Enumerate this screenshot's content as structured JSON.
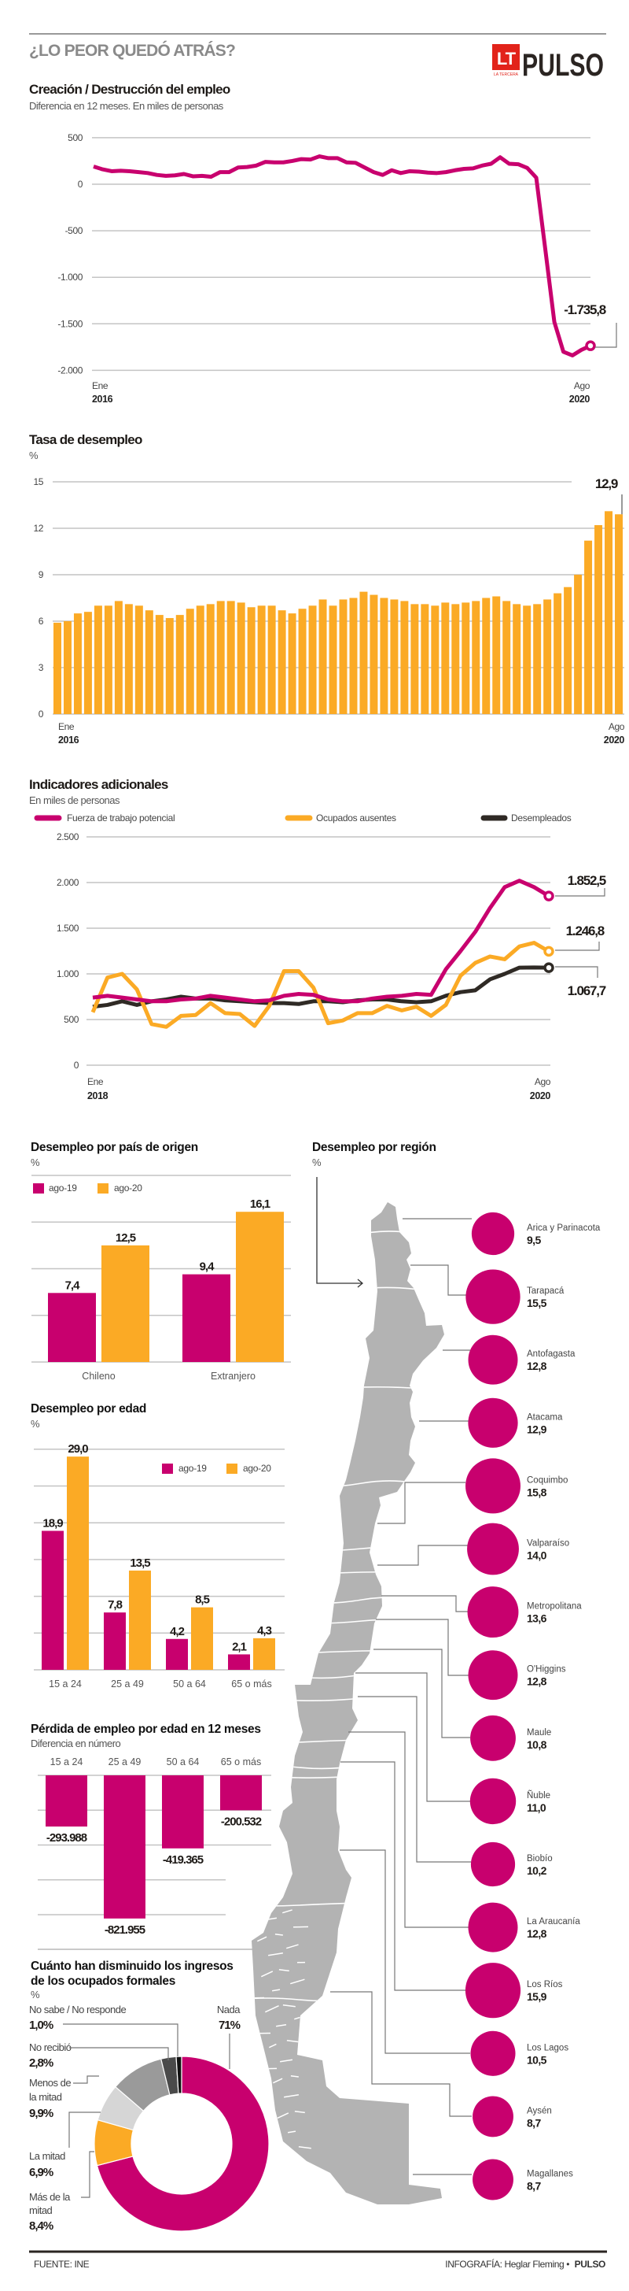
{
  "header": {
    "title": "¿LO PEOR QUEDÓ ATRÁS?",
    "logo_lt": "LT",
    "logo_lt_sub": "LA TERCERA",
    "logo_brand": "PULSO"
  },
  "colors": {
    "magenta": "#c8006e",
    "orange": "#fbaa25",
    "dark": "#2f2a25",
    "grid": "#c4c4c4",
    "map": "#b3b3b3",
    "logo_red": "#e2231a"
  },
  "chart_data": [
    {
      "id": "empleo",
      "type": "line",
      "title": "Creación / Destrucción del empleo",
      "subtitle": "Diferencia en 12 meses. En miles de personas",
      "x_range": [
        "2016-01",
        "2020-08"
      ],
      "x_labels": {
        "start_month": "Ene",
        "start_year": "2016",
        "end_month": "Ago",
        "end_year": "2020"
      },
      "ylim": [
        -2000,
        500
      ],
      "yticks": [
        500,
        0,
        -500,
        -1000,
        -1500,
        -2000
      ],
      "ytick_labels": [
        "500",
        "0",
        "-500",
        "-1.000",
        "-1.500",
        "-2.000"
      ],
      "grid": true,
      "series": [
        {
          "color": "#c8006e",
          "values": [
            190,
            160,
            140,
            145,
            140,
            130,
            120,
            100,
            90,
            95,
            110,
            85,
            90,
            80,
            130,
            130,
            180,
            185,
            200,
            240,
            235,
            235,
            250,
            270,
            265,
            300,
            280,
            280,
            235,
            230,
            180,
            130,
            100,
            150,
            120,
            140,
            135,
            125,
            120,
            130,
            150,
            165,
            170,
            200,
            220,
            290,
            220,
            215,
            175,
            70,
            -700,
            -1480,
            -1800,
            -1840,
            -1780,
            -1735.8
          ]
        }
      ],
      "end_label": "-1.735,8"
    },
    {
      "id": "tasa",
      "type": "bar",
      "title": "Tasa de desempleo",
      "unit": "%",
      "x_range": [
        "2016-01",
        "2020-08"
      ],
      "x_labels": {
        "start_month": "Ene",
        "start_year": "2016",
        "end_month": "Ago",
        "end_year": "2020"
      },
      "ylim": [
        0,
        15
      ],
      "yticks": [
        0,
        3,
        6,
        9,
        12,
        15
      ],
      "ytick_labels": [
        "0",
        "3",
        "6",
        "9",
        "12",
        "15"
      ],
      "grid": true,
      "color": "#fbaa25",
      "values": [
        5.9,
        6.0,
        6.5,
        6.6,
        7.0,
        7.0,
        7.3,
        7.1,
        7.0,
        6.7,
        6.4,
        6.2,
        6.4,
        6.8,
        7.0,
        7.1,
        7.3,
        7.3,
        7.2,
        6.9,
        7.0,
        7.0,
        6.7,
        6.5,
        6.8,
        7.0,
        7.4,
        7.0,
        7.4,
        7.5,
        7.9,
        7.7,
        7.5,
        7.4,
        7.3,
        7.1,
        7.1,
        7.0,
        7.2,
        7.1,
        7.2,
        7.3,
        7.5,
        7.6,
        7.3,
        7.1,
        7.0,
        7.1,
        7.4,
        7.8,
        8.2,
        9.0,
        11.2,
        12.2,
        13.1,
        12.9
      ],
      "end_label": "12,9"
    },
    {
      "id": "indicadores",
      "type": "line",
      "title": "Indicadores adicionales",
      "subtitle": "En miles de personas",
      "x_range": [
        "2018-01",
        "2020-08"
      ],
      "x_labels": {
        "start_month": "Ene",
        "start_year": "2018",
        "end_month": "Ago",
        "end_year": "2020"
      },
      "ylim": [
        0,
        2500
      ],
      "yticks": [
        0,
        500,
        1000,
        1500,
        2000,
        2500
      ],
      "ytick_labels": [
        "0",
        "500",
        "1.000",
        "1.500",
        "2.000",
        "2.500"
      ],
      "grid": true,
      "legend": "top",
      "series": [
        {
          "name": "Fuerza de trabajo potencial",
          "color": "#c8006e",
          "end_label": "1.852,5",
          "values": [
            740,
            760,
            740,
            720,
            700,
            700,
            720,
            730,
            760,
            740,
            720,
            700,
            710,
            760,
            780,
            770,
            720,
            700,
            700,
            730,
            750,
            760,
            780,
            770,
            1050,
            1250,
            1460,
            1720,
            1950,
            2020,
            1950,
            1852.5
          ]
        },
        {
          "name": "Ocupados ausentes",
          "color": "#fbaa25",
          "end_label": "1.246,8",
          "values": [
            580,
            960,
            1000,
            830,
            450,
            420,
            540,
            550,
            680,
            570,
            560,
            430,
            650,
            1030,
            1030,
            850,
            460,
            490,
            570,
            570,
            650,
            600,
            640,
            540,
            660,
            980,
            1120,
            1190,
            1160,
            1300,
            1340,
            1246.8
          ]
        },
        {
          "name": "Desempleados",
          "color": "#2f2a25",
          "end_label": "1.067,7",
          "values": [
            640,
            660,
            700,
            660,
            700,
            720,
            750,
            730,
            730,
            710,
            700,
            690,
            680,
            680,
            670,
            700,
            700,
            690,
            710,
            720,
            720,
            700,
            690,
            700,
            760,
            800,
            820,
            940,
            1000,
            1068,
            1070,
            1067.7
          ]
        }
      ]
    },
    {
      "id": "origen",
      "type": "bar",
      "title": "Desempleo por país de origen",
      "unit": "%",
      "categories": [
        "Chileno",
        "Extranjero"
      ],
      "ylim": [
        0,
        20
      ],
      "grid": true,
      "legend": "top-left",
      "series": [
        {
          "name": "ago-19",
          "color": "#c8006e",
          "values": [
            7.4,
            9.4
          ],
          "labels": [
            "7,4",
            "9,4"
          ]
        },
        {
          "name": "ago-20",
          "color": "#fbaa25",
          "values": [
            12.5,
            16.1
          ],
          "labels": [
            "12,5",
            "16,1"
          ]
        }
      ]
    },
    {
      "id": "edad",
      "type": "bar",
      "title": "Desempleo por edad",
      "unit": "%",
      "categories": [
        "15 a 24",
        "25 a 49",
        "50 a 64",
        "65 o más"
      ],
      "ylim": [
        0,
        30
      ],
      "grid": true,
      "legend": "top-right",
      "series": [
        {
          "name": "ago-19",
          "color": "#c8006e",
          "values": [
            18.9,
            7.8,
            4.2,
            2.1
          ],
          "labels": [
            "18,9",
            "7,8",
            "4,2",
            "2,1"
          ]
        },
        {
          "name": "ago-20",
          "color": "#fbaa25",
          "values": [
            29.0,
            13.5,
            8.5,
            4.3
          ],
          "labels": [
            "29,0",
            "13,5",
            "8,5",
            "4,3"
          ]
        }
      ]
    },
    {
      "id": "perdida",
      "type": "bar",
      "title": "Pérdida de empleo por edad en 12 meses",
      "subtitle": "Diferencia en número",
      "categories": [
        "15 a 24",
        "25 a 49",
        "50 a 64",
        "65 o más"
      ],
      "ylim": [
        -800000,
        0
      ],
      "grid": true,
      "color": "#c8006e",
      "values": [
        -293988,
        -821955,
        -419365,
        -200532
      ],
      "labels": [
        "-293.988",
        "-821.955",
        "-419.365",
        "-200.532"
      ]
    },
    {
      "id": "ingresos",
      "type": "pie",
      "title_lines": [
        "Cuánto han disminuido los ingresos",
        "de los ocupados formales"
      ],
      "unit": "%",
      "slices": [
        {
          "name": "Nada",
          "lines": [
            "Nada"
          ],
          "value": 71,
          "label": "71%",
          "color": "#c8006e"
        },
        {
          "name": "Más de la mitad",
          "lines": [
            "Más de la",
            "mitad"
          ],
          "value": 8.4,
          "label": "8,4%",
          "color": "#fbaa25"
        },
        {
          "name": "La mitad",
          "lines": [
            "La mitad"
          ],
          "value": 6.9,
          "label": "6,9%",
          "color": "#d6d6d6"
        },
        {
          "name": "Menos de la mitad",
          "lines": [
            "Menos de",
            "la mitad"
          ],
          "value": 9.9,
          "label": "9,9%",
          "color": "#9a9a9a"
        },
        {
          "name": "No recibió",
          "lines": [
            "No recibió"
          ],
          "value": 2.8,
          "label": "2,8%",
          "color": "#4a4a4a"
        },
        {
          "name": "No sabe / No responde",
          "lines": [
            "No sabe / No responde"
          ],
          "value": 1.0,
          "label": "1,0%",
          "color": "#111111"
        }
      ]
    },
    {
      "id": "region",
      "type": "bubble-map",
      "title": "Desempleo por región",
      "unit": "%",
      "regions": [
        {
          "name": "Arica y Parinacota",
          "value": 9.5,
          "label": "9,5"
        },
        {
          "name": "Tarapacá",
          "value": 15.5,
          "label": "15,5"
        },
        {
          "name": "Antofagasta",
          "value": 12.8,
          "label": "12,8"
        },
        {
          "name": "Atacama",
          "value": 12.9,
          "label": "12,9"
        },
        {
          "name": "Coquimbo",
          "value": 15.8,
          "label": "15,8"
        },
        {
          "name": "Valparaíso",
          "value": 14.0,
          "label": "14,0"
        },
        {
          "name": "Metropolitana",
          "value": 13.6,
          "label": "13,6"
        },
        {
          "name": "O'Higgins",
          "value": 12.8,
          "label": "12,8"
        },
        {
          "name": "Maule",
          "value": 10.8,
          "label": "10,8"
        },
        {
          "name": "Ñuble",
          "value": 11.0,
          "label": "11,0"
        },
        {
          "name": "Biobío",
          "value": 10.2,
          "label": "10,2"
        },
        {
          "name": "La Araucanía",
          "value": 12.8,
          "label": "12,8"
        },
        {
          "name": "Los Ríos",
          "value": 15.9,
          "label": "15,9"
        },
        {
          "name": "Los Lagos",
          "value": 10.5,
          "label": "10,5"
        },
        {
          "name": "Aysén",
          "value": 8.7,
          "label": "8,7"
        },
        {
          "name": "Magallanes",
          "value": 8.7,
          "label": "8,7"
        }
      ]
    }
  ],
  "footer": {
    "source": "FUENTE: INE",
    "credit": "INFOGRAFÍA: Heglar Fleming •",
    "credit_brand": "PULSO"
  }
}
